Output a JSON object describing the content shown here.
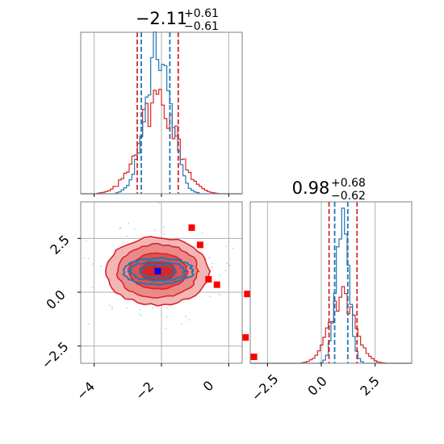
{
  "chart_data": {
    "type": "corner",
    "title_param_0": {
      "value": "−2.11",
      "sup": "+0.61",
      "sub": "−0.61"
    },
    "title_param_1": {
      "value": "0.98",
      "sup": "+0.68",
      "sub": "−0.62"
    },
    "x_ticks_param0": [
      "−4",
      "−2",
      "0"
    ],
    "y_ticks_param1": [
      "2.5",
      "0.0",
      "−2.5"
    ],
    "x_ticks_param1": [
      "−2.5",
      "0.0",
      "2.5"
    ],
    "param0_range": [
      -4.4,
      0.4
    ],
    "param1_range": [
      -3.3,
      4.2
    ],
    "grid": true,
    "colors": {
      "blue": "#1f77b4",
      "red": "#d62728",
      "marker_blue": "#0000ff",
      "marker_red": "#ff0000"
    },
    "series": [
      {
        "color": "blue",
        "marginal_0_center": -2.11,
        "marginal_0_sigma": 0.38,
        "marginal_1_center": 0.98,
        "marginal_1_sigma": 0.3
      },
      {
        "color": "red",
        "marginal_0_center": -2.11,
        "marginal_0_sigma": 0.55,
        "marginal_1_center": 0.98,
        "marginal_1_sigma": 0.6
      }
    ],
    "quantiles_0": {
      "blue": [
        -2.6,
        -1.75
      ],
      "red": [
        -2.72,
        -1.5
      ]
    },
    "quantiles_1": {
      "blue": [
        0.62,
        1.23
      ],
      "red": [
        0.36,
        1.66
      ]
    },
    "markers_blue": [
      [
        -2.11,
        0.98
      ]
    ],
    "markers_red": [
      [
        -1.1,
        3.0
      ],
      [
        -0.85,
        2.2
      ],
      [
        -0.6,
        0.6
      ],
      [
        -0.35,
        0.35
      ],
      [
        0.55,
        -0.08
      ],
      [
        0.5,
        -2.1
      ],
      [
        0.75,
        -3.0
      ]
    ]
  }
}
